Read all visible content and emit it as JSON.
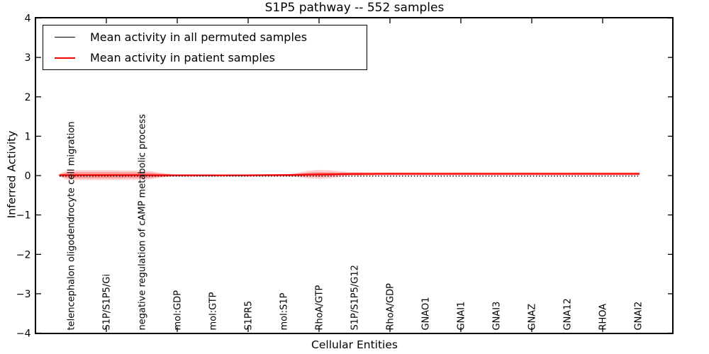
{
  "title": "S1P5 pathway -- 552 samples",
  "chart_data": {
    "type": "line",
    "title": "S1P5 pathway -- 552 samples",
    "xlabel": "Cellular Entities",
    "ylabel": "Inferred Activity",
    "xlim": [
      0,
      18
    ],
    "ylim": [
      -4,
      4
    ],
    "grid": false,
    "legend_position": "upper left",
    "ytick_values": [
      4,
      3,
      2,
      1,
      0,
      -1,
      -2,
      -3,
      -4
    ],
    "ytick_labels": [
      "4",
      "3",
      "2",
      "1",
      "0",
      "−1",
      "−2",
      "−3",
      "−4"
    ],
    "xtick_positions": [
      2,
      4,
      6,
      8,
      10,
      12,
      14,
      16
    ],
    "categories": [
      "telencephalon oligodendrocyte cell migration",
      "S1P/S1P5/Gi",
      "negative regulation of cAMP metabolic process",
      "mol:GDP",
      "mol:GTP",
      "S1PR5",
      "mol:S1P",
      "RhoA/GTP",
      "S1P/S1P5/G12",
      "RhoA/GDP",
      "GNAO1",
      "GNAI1",
      "GNAI3",
      "GNAZ",
      "GNA12",
      "RHOA",
      "GNAI2"
    ],
    "series": [
      {
        "name": "Mean activity in all permuted samples",
        "color": "#000000",
        "line_style": "dotted",
        "values": [
          -0.01,
          -0.01,
          -0.01,
          -0.01,
          -0.01,
          -0.01,
          -0.01,
          -0.01,
          -0.01,
          -0.01,
          -0.01,
          -0.01,
          -0.01,
          -0.01,
          -0.01,
          -0.01,
          -0.01
        ]
      },
      {
        "name": "Mean activity in patient samples",
        "color": "#ff0000",
        "line_style": "solid",
        "values": [
          0.01,
          0.01,
          0.01,
          0.008,
          0.008,
          0.008,
          0.012,
          0.03,
          0.042,
          0.045,
          0.045,
          0.045,
          0.045,
          0.045,
          0.045,
          0.045,
          0.045
        ]
      }
    ],
    "band": {
      "color": "#ff0000",
      "outer_opacity": 0.18,
      "inner_opacity": 0.26,
      "center_follows": "patient",
      "outer_halfwidth": [
        0.125,
        0.125,
        0.115,
        0.025,
        0.02,
        0.02,
        0.027,
        0.115,
        0.048,
        0.042,
        0.04,
        0.04,
        0.04,
        0.04,
        0.04,
        0.04,
        0.04
      ],
      "inner_halfwidth": [
        0.08,
        0.08,
        0.073,
        0.015,
        0.012,
        0.012,
        0.016,
        0.06,
        0.028,
        0.025,
        0.023,
        0.023,
        0.023,
        0.023,
        0.023,
        0.023,
        0.023
      ]
    }
  }
}
